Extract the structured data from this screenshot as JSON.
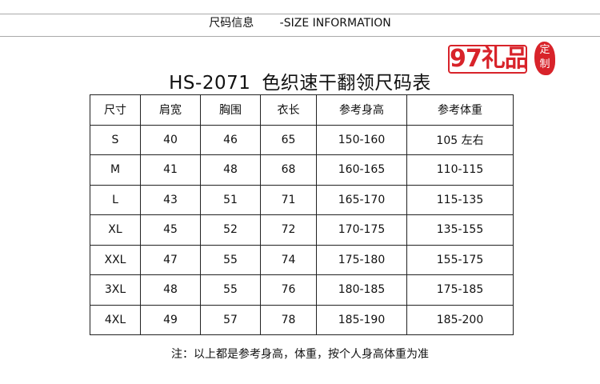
{
  "header": {
    "cn": "尺码信息",
    "en": "-SIZE INFORMATION"
  },
  "title": {
    "code": "HS-2071",
    "name": "色织速干翻领尺码表"
  },
  "table": {
    "columns": [
      "尺寸",
      "肩宽",
      "胸围",
      "衣长",
      "参考身高",
      "参考体重"
    ],
    "rows": [
      [
        "S",
        "40",
        "46",
        "65",
        "150-160",
        "105 左右"
      ],
      [
        "M",
        "41",
        "48",
        "68",
        "160-165",
        "110-115"
      ],
      [
        "L",
        "43",
        "51",
        "71",
        "165-170",
        "115-135"
      ],
      [
        "XL",
        "45",
        "52",
        "72",
        "170-175",
        "135-155"
      ],
      [
        "XXL",
        "47",
        "55",
        "74",
        "175-180",
        "155-175"
      ],
      [
        "3XL",
        "48",
        "55",
        "76",
        "180-185",
        "175-185"
      ],
      [
        "4XL",
        "49",
        "57",
        "78",
        "185-190",
        "185-200"
      ]
    ]
  },
  "note": "注：以上都是参考身高，体重，按个人身高体重为准",
  "watermark": {
    "logo": "97礼品",
    "seal": "定制",
    "color": "#d8232a"
  }
}
